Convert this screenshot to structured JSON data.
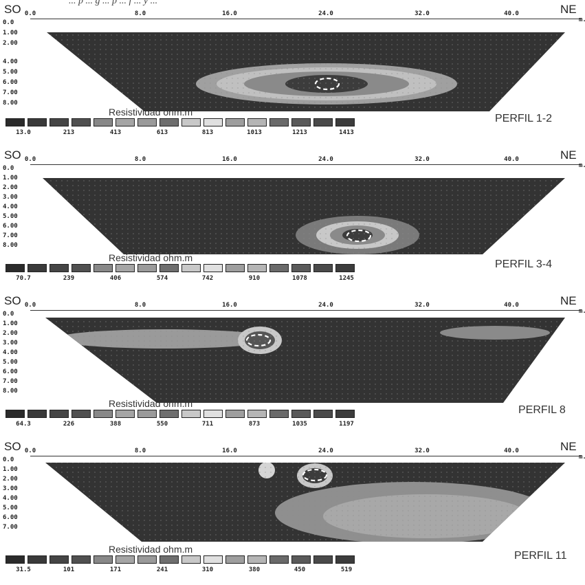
{
  "caption": "... p ... g ... p ... f ... y ...",
  "direction_left": "SO",
  "direction_right": "NE",
  "unit": "m.",
  "x_ticks": [
    "0.0",
    "8.0",
    "16.0",
    "24.0",
    "32.0",
    "40.0"
  ],
  "colorbar_title": "Resistividad ohm.m",
  "colors": [
    "#2b2b2b",
    "#3a3a3a",
    "#454545",
    "#505050",
    "#888888",
    "#a5a5a5",
    "#9a9a9a",
    "#6e6e6e",
    "#c8c8c8",
    "#e0e0e0",
    "#9e9e9e",
    "#b5b5b5",
    "#6a6a6a",
    "#5a5a5a",
    "#4a4a4a",
    "#3c3c3c"
  ],
  "profiles": [
    {
      "name": "PERFIL 1-2",
      "depth_ticks": [
        "0.0",
        "1.00",
        "2.00",
        "4.00",
        "5.00",
        "6.00",
        "7.00",
        "8.00"
      ],
      "scale_labels": [
        "13.0",
        "213",
        "413",
        "613",
        "813",
        "1013",
        "1213",
        "1413"
      ]
    },
    {
      "name": "PERFIL 3-4",
      "depth_ticks": [
        "0.0",
        "1.00",
        "2.00",
        "3.00",
        "4.00",
        "5.00",
        "6.00",
        "7.00",
        "8.00"
      ],
      "scale_labels": [
        "70.7",
        "239",
        "406",
        "574",
        "742",
        "910",
        "1078",
        "1245"
      ]
    },
    {
      "name": "PERFIL 8",
      "depth_ticks": [
        "0.0",
        "1.00",
        "2.00",
        "3.00",
        "4.00",
        "5.00",
        "6.00",
        "7.00",
        "8.00"
      ],
      "scale_labels": [
        "64.3",
        "226",
        "388",
        "550",
        "711",
        "873",
        "1035",
        "1197"
      ]
    },
    {
      "name": "PERFIL 11",
      "depth_ticks": [
        "0.0",
        "1.00",
        "2.00",
        "3.00",
        "4.00",
        "5.00",
        "6.00",
        "7.00"
      ],
      "scale_labels": [
        "31.5",
        "101",
        "171",
        "241",
        "310",
        "380",
        "450",
        "519"
      ]
    }
  ]
}
